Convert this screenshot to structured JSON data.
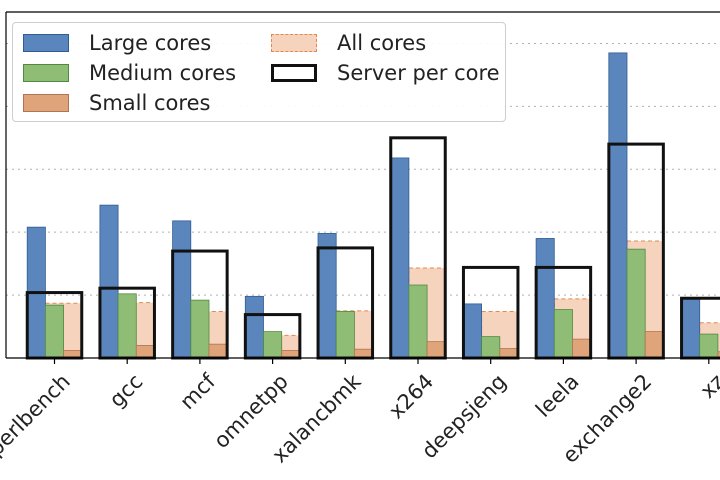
{
  "chart_data": {
    "type": "bar",
    "categories": [
      "perlbench",
      "gcc",
      "mcf",
      "omnetpp",
      "xalancbmk",
      "x264",
      "deepsjeng",
      "leela",
      "exchange2",
      "xz"
    ],
    "series": [
      {
        "name": "Large cores",
        "values": [
          2.08,
          2.43,
          2.18,
          0.98,
          1.98,
          3.18,
          0.86,
          1.9,
          4.85,
          0.96
        ],
        "color": "#5b86bd"
      },
      {
        "name": "Medium cores",
        "values": [
          0.84,
          1.02,
          0.92,
          0.42,
          0.74,
          1.16,
          0.34,
          0.77,
          1.73,
          0.38
        ],
        "color": "#8fbd75"
      },
      {
        "name": "Small cores",
        "values": [
          0.12,
          0.2,
          0.22,
          0.12,
          0.14,
          0.26,
          0.15,
          0.3,
          0.42,
          0.1
        ],
        "color": "#dfa47a"
      },
      {
        "name": "All cores",
        "values": [
          0.87,
          0.88,
          0.74,
          0.36,
          0.75,
          1.43,
          0.74,
          0.94,
          1.86,
          0.56
        ],
        "color": "#f6d3bc"
      },
      {
        "name": "Server per core",
        "values": [
          1.04,
          1.11,
          1.7,
          0.69,
          1.75,
          3.5,
          1.44,
          1.44,
          3.4,
          0.95
        ],
        "color": "#111111"
      }
    ],
    "ylim": [
      0,
      5.5
    ],
    "grid": true,
    "legend_position": "top-left"
  },
  "legend": {
    "large": "Large cores",
    "medium": "Medium cores",
    "small": "Small cores",
    "all": "All cores",
    "server": "Server per core"
  }
}
